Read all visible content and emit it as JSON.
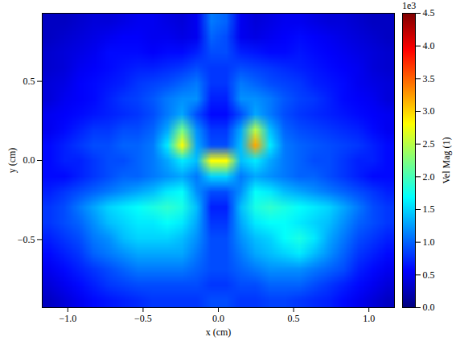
{
  "chart_data": {
    "type": "heatmap",
    "xlabel": "x (cm)",
    "ylabel": "y (cm)",
    "xlim": [
      -1.17,
      1.17
    ],
    "ylim": [
      -0.93,
      0.93
    ],
    "xticks": [
      {
        "value": -1,
        "label": "−1.0"
      },
      {
        "value": -0.5,
        "label": "−0.5"
      },
      {
        "value": 0,
        "label": "0.0"
      },
      0.5,
      {
        "value": 1,
        "label": "1.0"
      }
    ],
    "yticks": [
      {
        "value": -0.5,
        "label": "−0.5"
      },
      {
        "value": 0,
        "label": "0.0"
      },
      0.5
    ],
    "color": "jet",
    "cells": [
      [
        0.3,
        0.3,
        0.35,
        0.4,
        0.4,
        0.45,
        0.5,
        0.5,
        0.45,
        0.4,
        0.5,
        1.1,
        1.0,
        0.5,
        0.4,
        0.45,
        0.5,
        0.5,
        0.45,
        0.4,
        0.4,
        0.35,
        0.3,
        0.3
      ],
      [
        0.3,
        0.35,
        0.4,
        0.45,
        0.5,
        0.55,
        0.55,
        0.5,
        0.5,
        0.45,
        0.5,
        1.0,
        0.9,
        0.5,
        0.45,
        0.5,
        0.55,
        0.6,
        0.55,
        0.5,
        0.45,
        0.4,
        0.35,
        0.3
      ],
      [
        0.35,
        0.4,
        0.45,
        0.5,
        0.6,
        0.6,
        0.6,
        0.55,
        0.6,
        0.6,
        0.7,
        0.9,
        0.9,
        0.7,
        0.65,
        0.6,
        0.6,
        0.65,
        0.6,
        0.55,
        0.5,
        0.45,
        0.4,
        0.35
      ],
      [
        0.35,
        0.4,
        0.5,
        0.55,
        0.6,
        0.65,
        0.7,
        0.7,
        0.75,
        0.8,
        0.9,
        0.8,
        0.8,
        0.9,
        0.85,
        0.8,
        0.75,
        0.7,
        0.65,
        0.6,
        0.55,
        0.5,
        0.4,
        0.35
      ],
      [
        0.4,
        0.45,
        0.55,
        0.6,
        0.65,
        0.7,
        0.8,
        0.85,
        0.9,
        1.0,
        1.1,
        0.8,
        0.8,
        1.1,
        1.0,
        0.9,
        0.85,
        0.8,
        0.7,
        0.65,
        0.6,
        0.5,
        0.45,
        0.4
      ],
      [
        0.4,
        0.5,
        0.55,
        0.6,
        0.7,
        0.8,
        0.85,
        0.95,
        1.1,
        1.2,
        1.2,
        0.7,
        0.7,
        1.2,
        1.2,
        1.1,
        0.95,
        0.85,
        0.8,
        0.7,
        0.6,
        0.55,
        0.5,
        0.4
      ],
      [
        0.5,
        0.55,
        0.6,
        0.65,
        0.7,
        0.75,
        0.8,
        0.9,
        1.1,
        1.3,
        0.9,
        0.6,
        0.6,
        0.9,
        1.3,
        1.1,
        0.9,
        0.8,
        0.75,
        0.7,
        0.65,
        0.6,
        0.55,
        0.5
      ],
      [
        0.5,
        0.6,
        0.7,
        0.8,
        0.8,
        0.9,
        0.9,
        1.0,
        1.3,
        2.2,
        1.2,
        0.8,
        0.8,
        1.3,
        2.5,
        1.4,
        1.0,
        0.9,
        0.85,
        0.8,
        0.75,
        0.7,
        0.6,
        0.5
      ],
      [
        0.6,
        0.7,
        0.8,
        0.9,
        0.9,
        1.0,
        1.0,
        1.1,
        1.6,
        2.8,
        1.3,
        0.9,
        0.9,
        1.4,
        3.2,
        1.6,
        1.1,
        1.0,
        0.95,
        0.9,
        0.85,
        0.8,
        0.7,
        0.6
      ],
      [
        0.6,
        0.7,
        0.7,
        0.8,
        0.9,
        0.9,
        1.0,
        1.1,
        1.3,
        1.6,
        1.4,
        2.8,
        2.8,
        1.4,
        1.6,
        1.3,
        1.1,
        1.0,
        0.9,
        0.9,
        0.8,
        0.7,
        0.7,
        0.6
      ],
      [
        0.6,
        0.6,
        0.7,
        0.8,
        0.9,
        1.0,
        1.0,
        1.1,
        1.2,
        1.3,
        1.1,
        1.5,
        1.5,
        1.1,
        1.3,
        1.2,
        1.1,
        1.0,
        1.0,
        0.9,
        0.8,
        0.7,
        0.6,
        0.6
      ],
      [
        0.7,
        0.8,
        0.9,
        1.0,
        1.1,
        1.2,
        1.3,
        1.4,
        1.6,
        1.7,
        1.2,
        0.9,
        0.9,
        1.2,
        1.7,
        1.6,
        1.4,
        1.3,
        1.2,
        1.1,
        1.0,
        0.9,
        0.8,
        0.7
      ],
      [
        0.8,
        0.9,
        1.1,
        1.3,
        1.5,
        1.6,
        1.7,
        1.8,
        1.9,
        1.8,
        1.4,
        0.7,
        0.7,
        1.4,
        1.8,
        1.9,
        1.8,
        1.7,
        1.6,
        1.5,
        1.3,
        1.1,
        0.9,
        0.8
      ],
      [
        0.8,
        0.9,
        1.0,
        1.2,
        1.4,
        1.5,
        1.6,
        1.6,
        1.7,
        1.6,
        1.3,
        0.8,
        0.8,
        1.3,
        1.6,
        1.7,
        1.7,
        1.6,
        1.5,
        1.4,
        1.2,
        1.0,
        0.9,
        0.8
      ],
      [
        0.7,
        0.8,
        0.9,
        1.1,
        1.2,
        1.4,
        1.5,
        1.5,
        1.5,
        1.4,
        1.2,
        0.9,
        0.9,
        1.2,
        1.4,
        1.5,
        1.7,
        1.8,
        1.6,
        1.3,
        1.1,
        0.9,
        0.8,
        0.7
      ],
      [
        0.6,
        0.7,
        0.8,
        1.0,
        1.1,
        1.2,
        1.3,
        1.3,
        1.3,
        1.3,
        1.1,
        0.9,
        0.9,
        1.1,
        1.3,
        1.4,
        1.5,
        1.6,
        1.4,
        1.2,
        1.0,
        0.8,
        0.7,
        0.6
      ],
      [
        0.5,
        0.6,
        0.7,
        0.8,
        0.9,
        1.0,
        1.1,
        1.1,
        1.1,
        1.1,
        1.0,
        0.9,
        0.9,
        1.0,
        1.1,
        1.2,
        1.2,
        1.2,
        1.1,
        1.0,
        0.9,
        0.7,
        0.6,
        0.5
      ],
      [
        0.4,
        0.5,
        0.6,
        0.7,
        0.8,
        0.85,
        0.9,
        0.9,
        0.9,
        0.9,
        0.9,
        0.8,
        0.8,
        0.9,
        0.9,
        1.0,
        1.0,
        1.0,
        0.9,
        0.8,
        0.7,
        0.6,
        0.5,
        0.4
      ],
      [
        0.3,
        0.4,
        0.5,
        0.6,
        0.65,
        0.7,
        0.75,
        0.8,
        0.8,
        0.8,
        0.8,
        0.9,
        0.9,
        0.8,
        0.8,
        0.85,
        0.85,
        0.8,
        0.75,
        0.7,
        0.6,
        0.5,
        0.4,
        0.3
      ]
    ],
    "colorbar": {
      "label": "Vel Mag (1)",
      "offset_label": "1e3",
      "range": [
        0,
        4.5
      ],
      "ticks": [
        {
          "value": 0,
          "label": "0.0"
        },
        0.5,
        {
          "value": 1,
          "label": "1.0"
        },
        1.5,
        {
          "value": 2,
          "label": "2.0"
        },
        2.5,
        {
          "value": 3,
          "label": "3.0"
        },
        3.5,
        {
          "value": 4,
          "label": "4.0"
        },
        4.5
      ]
    }
  }
}
